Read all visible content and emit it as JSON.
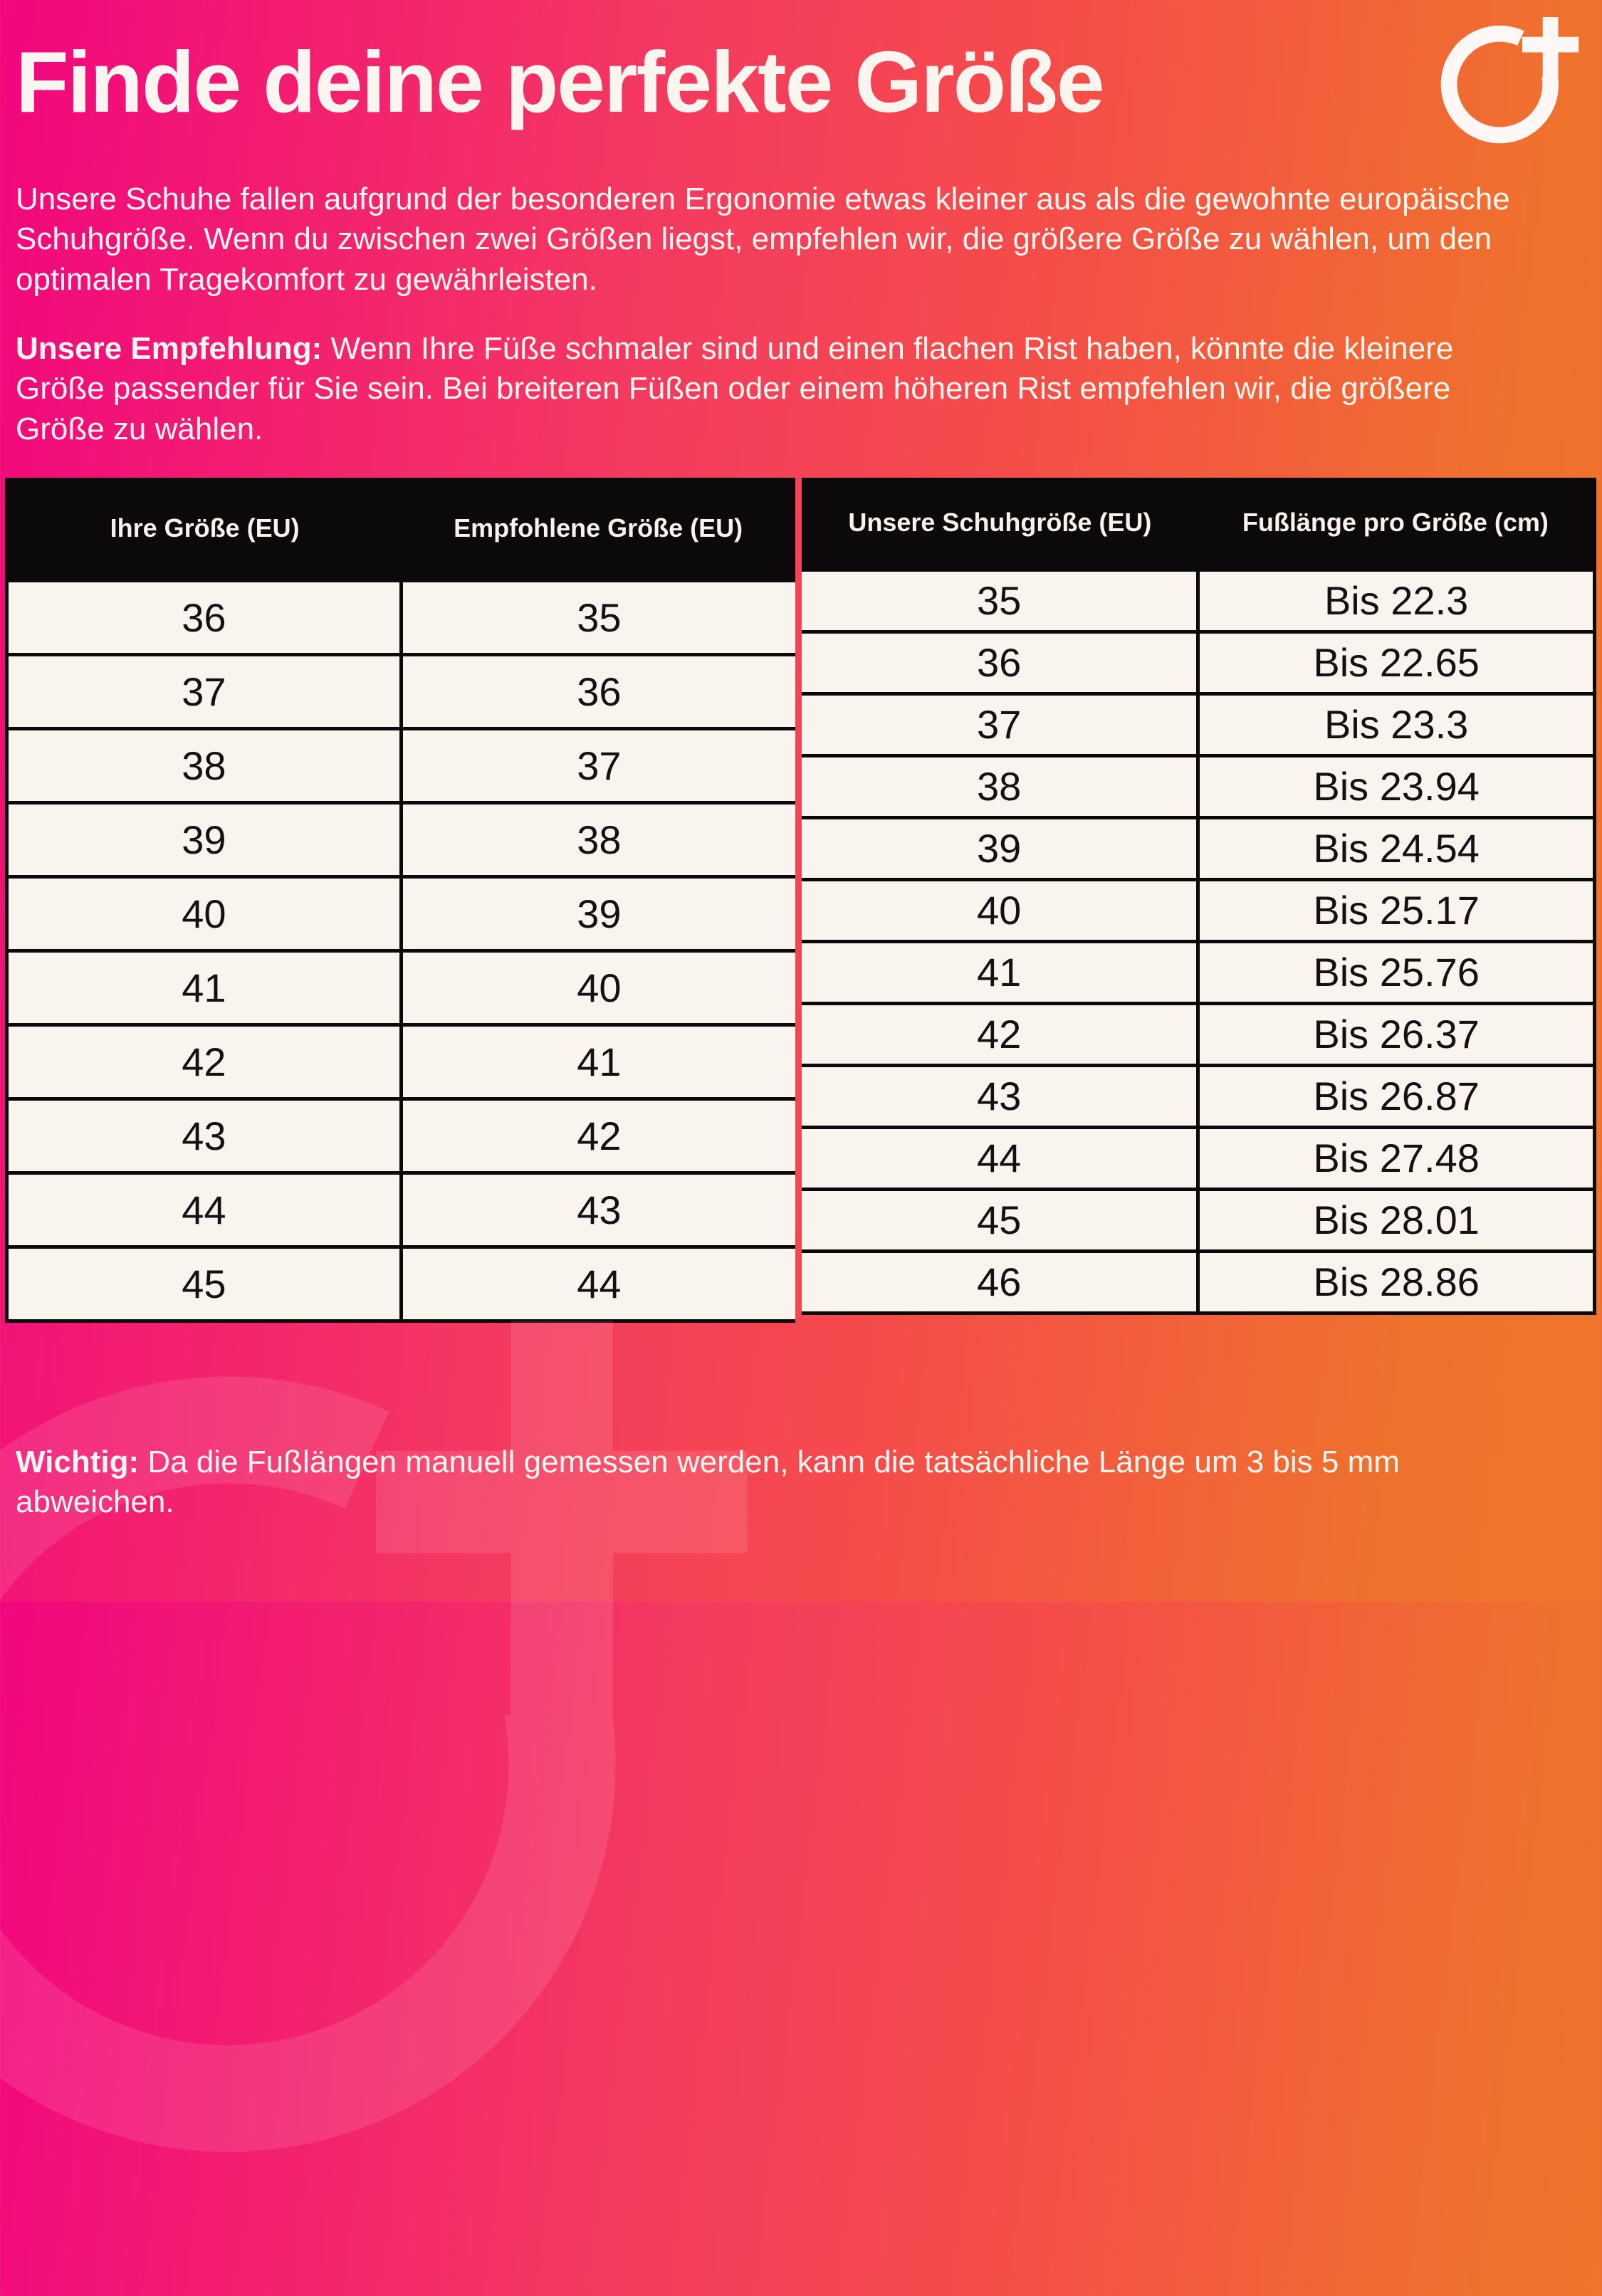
{
  "page": {
    "title": "Finde deine perfekte Größe",
    "intro": "Unsere Schuhe fallen aufgrund der besonderen Ergonomie etwas kleiner aus als die gewohnte europäische Schuhgröße. Wenn du zwischen zwei Größen liegst, empfehlen wir, die größere Größe zu wählen, um den optimalen Tragekomfort zu gewährleisten.",
    "recommendation_label": "Unsere Empfehlung:",
    "recommendation_text": " Wenn Ihre Füße schmaler sind und einen flachen Rist haben, könnte die kleinere Größe passender für Sie sein. Bei breiteren Füßen oder einem höheren Rist empfehlen wir, die größere Größe zu wählen.",
    "note_label": "Wichtig:",
    "note_text": " Da die Fußlängen manuell gemessen werden, kann die tatsächliche Länge um 3 bis 5 mm abweichen."
  },
  "logo": {
    "name": "circle-plus-brand-logo"
  },
  "size_conversion_table": {
    "headers": [
      "Ihre Größe (EU)",
      "Empfohlene Größe (EU)"
    ],
    "rows": [
      [
        "36",
        "35"
      ],
      [
        "37",
        "36"
      ],
      [
        "38",
        "37"
      ],
      [
        "39",
        "38"
      ],
      [
        "40",
        "39"
      ],
      [
        "41",
        "40"
      ],
      [
        "42",
        "41"
      ],
      [
        "43",
        "42"
      ],
      [
        "44",
        "43"
      ],
      [
        "45",
        "44"
      ]
    ]
  },
  "foot_length_table": {
    "headers": [
      "Unsere Schuhgröße (EU)",
      "Fußlänge pro Größe (cm)"
    ],
    "rows": [
      [
        "35",
        "Bis 22.3"
      ],
      [
        "36",
        "Bis 22.65"
      ],
      [
        "37",
        "Bis 23.3"
      ],
      [
        "38",
        "Bis 23.94"
      ],
      [
        "39",
        "Bis 24.54"
      ],
      [
        "40",
        "Bis 25.17"
      ],
      [
        "41",
        "Bis 25.76"
      ],
      [
        "42",
        "Bis 26.37"
      ],
      [
        "43",
        "Bis 26.87"
      ],
      [
        "44",
        "Bis 27.48"
      ],
      [
        "45",
        "Bis 28.01"
      ],
      [
        "46",
        "Bis 28.86"
      ]
    ]
  },
  "colors": {
    "gradient_start": "#f2067e",
    "gradient_mid": "#f54b4b",
    "gradient_end": "#ef722c",
    "table_header_bg": "#0c090a",
    "cell_bg": "#faf4ef",
    "text_light": "#fbf5f0",
    "text_dark": "#141114"
  }
}
